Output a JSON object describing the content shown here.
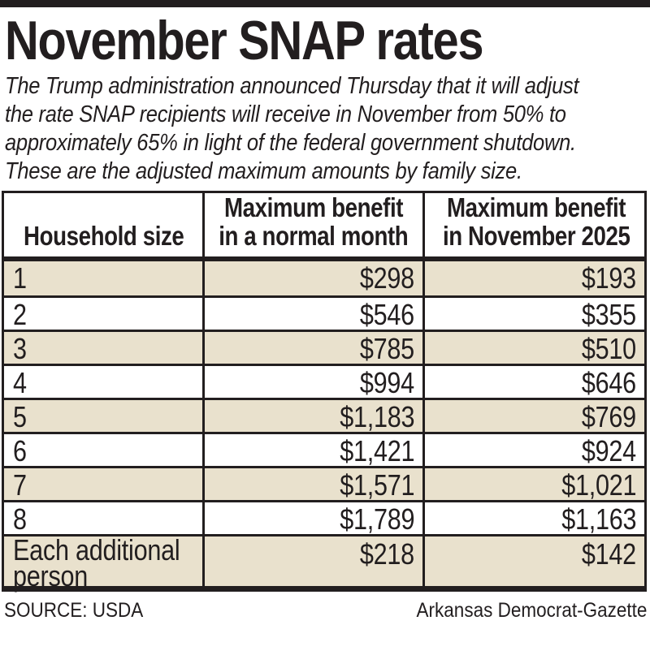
{
  "page": {
    "title": "November SNAP rates",
    "intro_lines": [
      "The Trump administration announced Thursday that it will adjust",
      "the rate SNAP recipients will receive in November from 50% to",
      "approximately 65% in light of the federal government shutdown.",
      "These are the adjusted maximum amounts by family size."
    ]
  },
  "table": {
    "columns": [
      {
        "label": "Household size"
      },
      {
        "line1": "Maximum benefit",
        "line2": "in a normal month"
      },
      {
        "line1": "Maximum benefit",
        "line2": "in November 2025"
      }
    ],
    "rows": [
      {
        "household": "1",
        "normal": "$298",
        "november": "$193"
      },
      {
        "household": "2",
        "normal": "$546",
        "november": "$355"
      },
      {
        "household": "3",
        "normal": "$785",
        "november": "$510"
      },
      {
        "household": "4",
        "normal": "$994",
        "november": "$646"
      },
      {
        "household": "5",
        "normal": "$1,183",
        "november": "$769"
      },
      {
        "household": "6",
        "normal": "$1,421",
        "november": "$924"
      },
      {
        "household": "7",
        "normal": "$1,571",
        "november": "$1,021"
      },
      {
        "household": "8",
        "normal": "$1,789",
        "november": "$1,163"
      },
      {
        "household_line1": "Each additional",
        "household_line2": "person",
        "normal": "$218",
        "november": "$142"
      }
    ]
  },
  "footer": {
    "source": "SOURCE: USDA",
    "credit": "Arkansas Democrat-Gazette"
  },
  "colors": {
    "ink": "#221e1f",
    "stripe": "#e9e1cd",
    "background": "#ffffff"
  },
  "chart_data": {
    "type": "table",
    "title": "November SNAP rates",
    "columns": [
      "Household size",
      "Maximum benefit in a normal month",
      "Maximum benefit in November 2025"
    ],
    "rows": [
      [
        "1",
        298,
        193
      ],
      [
        "2",
        546,
        355
      ],
      [
        "3",
        785,
        510
      ],
      [
        "4",
        994,
        646
      ],
      [
        "5",
        1183,
        769
      ],
      [
        "6",
        1421,
        924
      ],
      [
        "7",
        1571,
        1021
      ],
      [
        "8",
        1789,
        1163
      ],
      [
        "Each additional person",
        218,
        142
      ]
    ],
    "source": "SOURCE: USDA",
    "credit": "Arkansas Democrat-Gazette",
    "layout_hints": {
      "striped_rows": "odd rows beige",
      "borders": "thick black newspaper rules"
    }
  }
}
